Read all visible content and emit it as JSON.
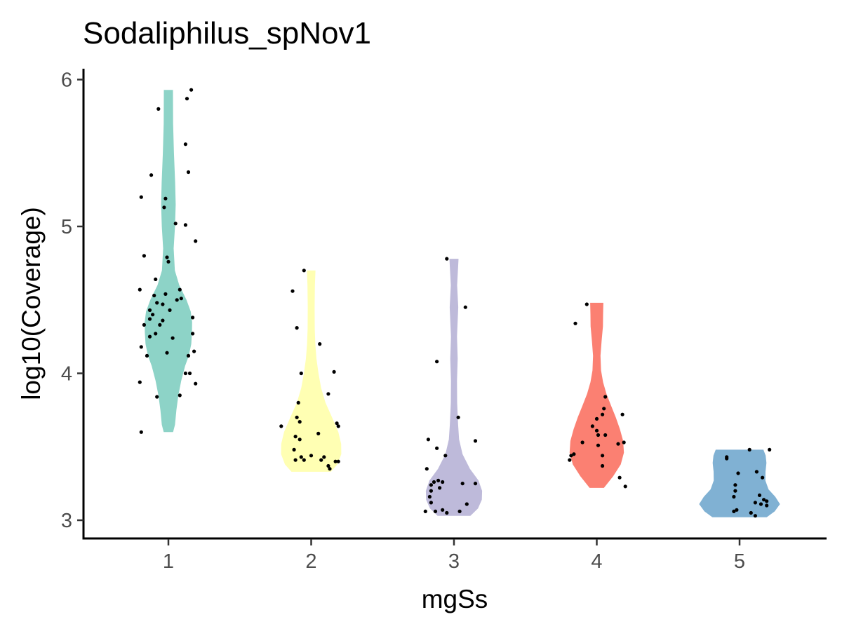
{
  "chart_data": {
    "type": "violin",
    "title": "Sodaliphilus_spNov1",
    "xlabel": "mgSs",
    "ylabel": "log10(Coverage)",
    "categories": [
      "1",
      "2",
      "3",
      "4",
      "5"
    ],
    "yticks": [
      "3",
      "4",
      "5",
      "6"
    ],
    "ylim": [
      2.88,
      6.07
    ],
    "legend": "none",
    "grid": false,
    "groups": [
      {
        "category": "1",
        "color": "#8DD3C7",
        "points": [
          {
            "dx": -0.19,
            "y": 5.2
          },
          {
            "dx": -0.07,
            "y": 5.8
          },
          {
            "dx": -0.12,
            "y": 5.35
          },
          {
            "dx": 0.13,
            "y": 5.87
          },
          {
            "dx": 0.16,
            "y": 5.93
          },
          {
            "dx": 0.12,
            "y": 5.56
          },
          {
            "dx": 0.14,
            "y": 5.37
          },
          {
            "dx": -0.02,
            "y": 5.19
          },
          {
            "dx": -0.03,
            "y": 5.13
          },
          {
            "dx": 0.05,
            "y": 5.02
          },
          {
            "dx": 0.12,
            "y": 5.01
          },
          {
            "dx": 0.19,
            "y": 4.9
          },
          {
            "dx": -0.17,
            "y": 4.8
          },
          {
            "dx": -0.01,
            "y": 4.79
          },
          {
            "dx": 0.0,
            "y": 4.76
          },
          {
            "dx": -0.2,
            "y": 4.57
          },
          {
            "dx": -0.09,
            "y": 4.64
          },
          {
            "dx": 0.08,
            "y": 4.57
          },
          {
            "dx": -0.1,
            "y": 4.53
          },
          {
            "dx": -0.02,
            "y": 4.54
          },
          {
            "dx": 0.09,
            "y": 4.51
          },
          {
            "dx": 0.06,
            "y": 4.5
          },
          {
            "dx": -0.08,
            "y": 4.48
          },
          {
            "dx": -0.04,
            "y": 4.47
          },
          {
            "dx": -0.13,
            "y": 4.43
          },
          {
            "dx": 0.01,
            "y": 4.43
          },
          {
            "dx": -0.11,
            "y": 4.4
          },
          {
            "dx": -0.13,
            "y": 4.37
          },
          {
            "dx": 0.17,
            "y": 4.38
          },
          {
            "dx": -0.04,
            "y": 4.36
          },
          {
            "dx": -0.17,
            "y": 4.33
          },
          {
            "dx": -0.06,
            "y": 4.33
          },
          {
            "dx": -0.09,
            "y": 4.27
          },
          {
            "dx": -0.13,
            "y": 4.25
          },
          {
            "dx": 0.03,
            "y": 4.24
          },
          {
            "dx": 0.17,
            "y": 4.27
          },
          {
            "dx": -0.19,
            "y": 4.18
          },
          {
            "dx": -0.15,
            "y": 4.12
          },
          {
            "dx": -0.01,
            "y": 4.14
          },
          {
            "dx": 0.18,
            "y": 4.15
          },
          {
            "dx": 0.14,
            "y": 4.12
          },
          {
            "dx": 0.12,
            "y": 4.0
          },
          {
            "dx": 0.15,
            "y": 4.0
          },
          {
            "dx": -0.2,
            "y": 3.94
          },
          {
            "dx": 0.19,
            "y": 3.93
          },
          {
            "dx": -0.08,
            "y": 3.84
          },
          {
            "dx": 0.08,
            "y": 3.85
          },
          {
            "dx": -0.19,
            "y": 3.6
          }
        ],
        "density": [
          {
            "y": 3.6,
            "w": 0.033
          },
          {
            "y": 3.65,
            "w": 0.046
          },
          {
            "y": 3.75,
            "w": 0.056
          },
          {
            "y": 3.85,
            "w": 0.07
          },
          {
            "y": 3.95,
            "w": 0.09
          },
          {
            "y": 4.05,
            "w": 0.117
          },
          {
            "y": 4.12,
            "w": 0.143
          },
          {
            "y": 4.2,
            "w": 0.16
          },
          {
            "y": 4.28,
            "w": 0.165
          },
          {
            "y": 4.35,
            "w": 0.166
          },
          {
            "y": 4.42,
            "w": 0.157
          },
          {
            "y": 4.5,
            "w": 0.127
          },
          {
            "y": 4.6,
            "w": 0.076
          },
          {
            "y": 4.7,
            "w": 0.045
          },
          {
            "y": 4.85,
            "w": 0.037
          },
          {
            "y": 5.0,
            "w": 0.046
          },
          {
            "y": 5.15,
            "w": 0.051
          },
          {
            "y": 5.3,
            "w": 0.047
          },
          {
            "y": 5.5,
            "w": 0.039
          },
          {
            "y": 5.7,
            "w": 0.033
          },
          {
            "y": 5.93,
            "w": 0.032
          }
        ]
      },
      {
        "category": "2",
        "color": "#FFFFB3",
        "points": [
          {
            "dx": -0.05,
            "y": 4.7
          },
          {
            "dx": -0.13,
            "y": 4.56
          },
          {
            "dx": -0.1,
            "y": 4.31
          },
          {
            "dx": 0.06,
            "y": 4.2
          },
          {
            "dx": 0.16,
            "y": 4.01
          },
          {
            "dx": -0.07,
            "y": 4.0
          },
          {
            "dx": 0.12,
            "y": 3.86
          },
          {
            "dx": -0.09,
            "y": 3.8
          },
          {
            "dx": -0.1,
            "y": 3.7
          },
          {
            "dx": -0.08,
            "y": 3.67
          },
          {
            "dx": -0.21,
            "y": 3.64
          },
          {
            "dx": 0.19,
            "y": 3.64
          },
          {
            "dx": 0.18,
            "y": 3.66
          },
          {
            "dx": 0.05,
            "y": 3.59
          },
          {
            "dx": -0.11,
            "y": 3.57
          },
          {
            "dx": -0.08,
            "y": 3.55
          },
          {
            "dx": -0.12,
            "y": 3.48
          },
          {
            "dx": 0.0,
            "y": 3.44
          },
          {
            "dx": -0.07,
            "y": 3.43
          },
          {
            "dx": -0.05,
            "y": 3.41
          },
          {
            "dx": 0.09,
            "y": 3.43
          },
          {
            "dx": -0.11,
            "y": 3.41
          },
          {
            "dx": 0.07,
            "y": 3.41
          },
          {
            "dx": 0.17,
            "y": 3.4
          },
          {
            "dx": 0.19,
            "y": 3.4
          },
          {
            "dx": 0.12,
            "y": 3.37
          },
          {
            "dx": 0.13,
            "y": 3.35
          }
        ],
        "density": [
          {
            "y": 3.33,
            "w": 0.138
          },
          {
            "y": 3.38,
            "w": 0.184
          },
          {
            "y": 3.45,
            "w": 0.211
          },
          {
            "y": 3.52,
            "w": 0.21
          },
          {
            "y": 3.6,
            "w": 0.19
          },
          {
            "y": 3.7,
            "w": 0.146
          },
          {
            "y": 3.8,
            "w": 0.1
          },
          {
            "y": 3.9,
            "w": 0.07
          },
          {
            "y": 4.0,
            "w": 0.051
          },
          {
            "y": 4.1,
            "w": 0.037
          },
          {
            "y": 4.2,
            "w": 0.029
          },
          {
            "y": 4.3,
            "w": 0.025
          },
          {
            "y": 4.45,
            "w": 0.024
          },
          {
            "y": 4.6,
            "w": 0.026
          },
          {
            "y": 4.7,
            "w": 0.03
          }
        ]
      },
      {
        "category": "3",
        "color": "#BEBADA",
        "points": [
          {
            "dx": -0.05,
            "y": 4.78
          },
          {
            "dx": 0.08,
            "y": 4.45
          },
          {
            "dx": -0.12,
            "y": 4.08
          },
          {
            "dx": 0.03,
            "y": 3.7
          },
          {
            "dx": -0.18,
            "y": 3.55
          },
          {
            "dx": 0.15,
            "y": 3.54
          },
          {
            "dx": -0.12,
            "y": 3.49
          },
          {
            "dx": -0.06,
            "y": 3.44
          },
          {
            "dx": -0.19,
            "y": 3.35
          },
          {
            "dx": -0.11,
            "y": 3.27
          },
          {
            "dx": -0.14,
            "y": 3.26
          },
          {
            "dx": -0.08,
            "y": 3.26
          },
          {
            "dx": -0.16,
            "y": 3.24
          },
          {
            "dx": 0.06,
            "y": 3.25
          },
          {
            "dx": 0.15,
            "y": 3.25
          },
          {
            "dx": -0.1,
            "y": 3.22
          },
          {
            "dx": -0.16,
            "y": 3.2
          },
          {
            "dx": -0.17,
            "y": 3.16
          },
          {
            "dx": 0.09,
            "y": 3.11
          },
          {
            "dx": -0.16,
            "y": 3.12
          },
          {
            "dx": -0.2,
            "y": 3.06
          },
          {
            "dx": -0.13,
            "y": 3.06
          },
          {
            "dx": -0.08,
            "y": 3.07
          },
          {
            "dx": -0.05,
            "y": 3.05
          },
          {
            "dx": 0.04,
            "y": 3.06
          }
        ],
        "density": [
          {
            "y": 3.03,
            "w": 0.115
          },
          {
            "y": 3.08,
            "w": 0.168
          },
          {
            "y": 3.14,
            "w": 0.195
          },
          {
            "y": 3.2,
            "w": 0.197
          },
          {
            "y": 3.27,
            "w": 0.172
          },
          {
            "y": 3.35,
            "w": 0.112
          },
          {
            "y": 3.45,
            "w": 0.06
          },
          {
            "y": 3.55,
            "w": 0.036
          },
          {
            "y": 3.65,
            "w": 0.029
          },
          {
            "y": 3.8,
            "w": 0.022
          },
          {
            "y": 3.95,
            "w": 0.021
          },
          {
            "y": 4.1,
            "w": 0.026
          },
          {
            "y": 4.25,
            "w": 0.021
          },
          {
            "y": 4.45,
            "w": 0.03
          },
          {
            "y": 4.6,
            "w": 0.022
          },
          {
            "y": 4.78,
            "w": 0.032
          }
        ]
      },
      {
        "category": "4",
        "color": "#FB8072",
        "points": [
          {
            "dx": -0.07,
            "y": 4.47
          },
          {
            "dx": -0.15,
            "y": 4.34
          },
          {
            "dx": 0.06,
            "y": 3.84
          },
          {
            "dx": 0.05,
            "y": 3.76
          },
          {
            "dx": 0.04,
            "y": 3.72
          },
          {
            "dx": 0.18,
            "y": 3.72
          },
          {
            "dx": 0.0,
            "y": 3.69
          },
          {
            "dx": -0.03,
            "y": 3.64
          },
          {
            "dx": 0.0,
            "y": 3.61
          },
          {
            "dx": 0.06,
            "y": 3.58
          },
          {
            "dx": 0.01,
            "y": 3.58
          },
          {
            "dx": -0.1,
            "y": 3.53
          },
          {
            "dx": 0.01,
            "y": 3.51
          },
          {
            "dx": 0.15,
            "y": 3.52
          },
          {
            "dx": 0.19,
            "y": 3.53
          },
          {
            "dx": -0.16,
            "y": 3.45
          },
          {
            "dx": -0.18,
            "y": 3.44
          },
          {
            "dx": 0.04,
            "y": 3.44
          },
          {
            "dx": -0.19,
            "y": 3.41
          },
          {
            "dx": 0.04,
            "y": 3.37
          },
          {
            "dx": 0.16,
            "y": 3.29
          },
          {
            "dx": 0.2,
            "y": 3.23
          }
        ],
        "density": [
          {
            "y": 3.22,
            "w": 0.05
          },
          {
            "y": 3.3,
            "w": 0.115
          },
          {
            "y": 3.38,
            "w": 0.168
          },
          {
            "y": 3.46,
            "w": 0.19
          },
          {
            "y": 3.54,
            "w": 0.185
          },
          {
            "y": 3.62,
            "w": 0.162
          },
          {
            "y": 3.7,
            "w": 0.133
          },
          {
            "y": 3.78,
            "w": 0.1
          },
          {
            "y": 3.86,
            "w": 0.068
          },
          {
            "y": 3.94,
            "w": 0.044
          },
          {
            "y": 4.02,
            "w": 0.03
          },
          {
            "y": 4.12,
            "w": 0.026
          },
          {
            "y": 4.22,
            "w": 0.034
          },
          {
            "y": 4.32,
            "w": 0.043
          },
          {
            "y": 4.4,
            "w": 0.044
          },
          {
            "y": 4.48,
            "w": 0.046
          }
        ]
      },
      {
        "category": "5",
        "color": "#80B1D3",
        "points": [
          {
            "dx": 0.07,
            "y": 3.48
          },
          {
            "dx": 0.21,
            "y": 3.48
          },
          {
            "dx": -0.09,
            "y": 3.43
          },
          {
            "dx": -0.09,
            "y": 3.42
          },
          {
            "dx": -0.01,
            "y": 3.32
          },
          {
            "dx": 0.12,
            "y": 3.33
          },
          {
            "dx": 0.16,
            "y": 3.29
          },
          {
            "dx": -0.03,
            "y": 3.24
          },
          {
            "dx": -0.03,
            "y": 3.2
          },
          {
            "dx": -0.04,
            "y": 3.16
          },
          {
            "dx": 0.14,
            "y": 3.17
          },
          {
            "dx": 0.17,
            "y": 3.14
          },
          {
            "dx": 0.19,
            "y": 3.13
          },
          {
            "dx": 0.15,
            "y": 3.11
          },
          {
            "dx": 0.11,
            "y": 3.12
          },
          {
            "dx": 0.19,
            "y": 3.1
          },
          {
            "dx": -0.02,
            "y": 3.07
          },
          {
            "dx": -0.04,
            "y": 3.06
          },
          {
            "dx": 0.08,
            "y": 3.05
          },
          {
            "dx": 0.11,
            "y": 3.03
          }
        ],
        "density": [
          {
            "y": 3.02,
            "w": 0.19
          },
          {
            "y": 3.06,
            "w": 0.246
          },
          {
            "y": 3.11,
            "w": 0.283
          },
          {
            "y": 3.16,
            "w": 0.25
          },
          {
            "y": 3.21,
            "w": 0.203
          },
          {
            "y": 3.27,
            "w": 0.181
          },
          {
            "y": 3.33,
            "w": 0.182
          },
          {
            "y": 3.39,
            "w": 0.188
          },
          {
            "y": 3.44,
            "w": 0.183
          },
          {
            "y": 3.48,
            "w": 0.167
          }
        ]
      }
    ]
  }
}
